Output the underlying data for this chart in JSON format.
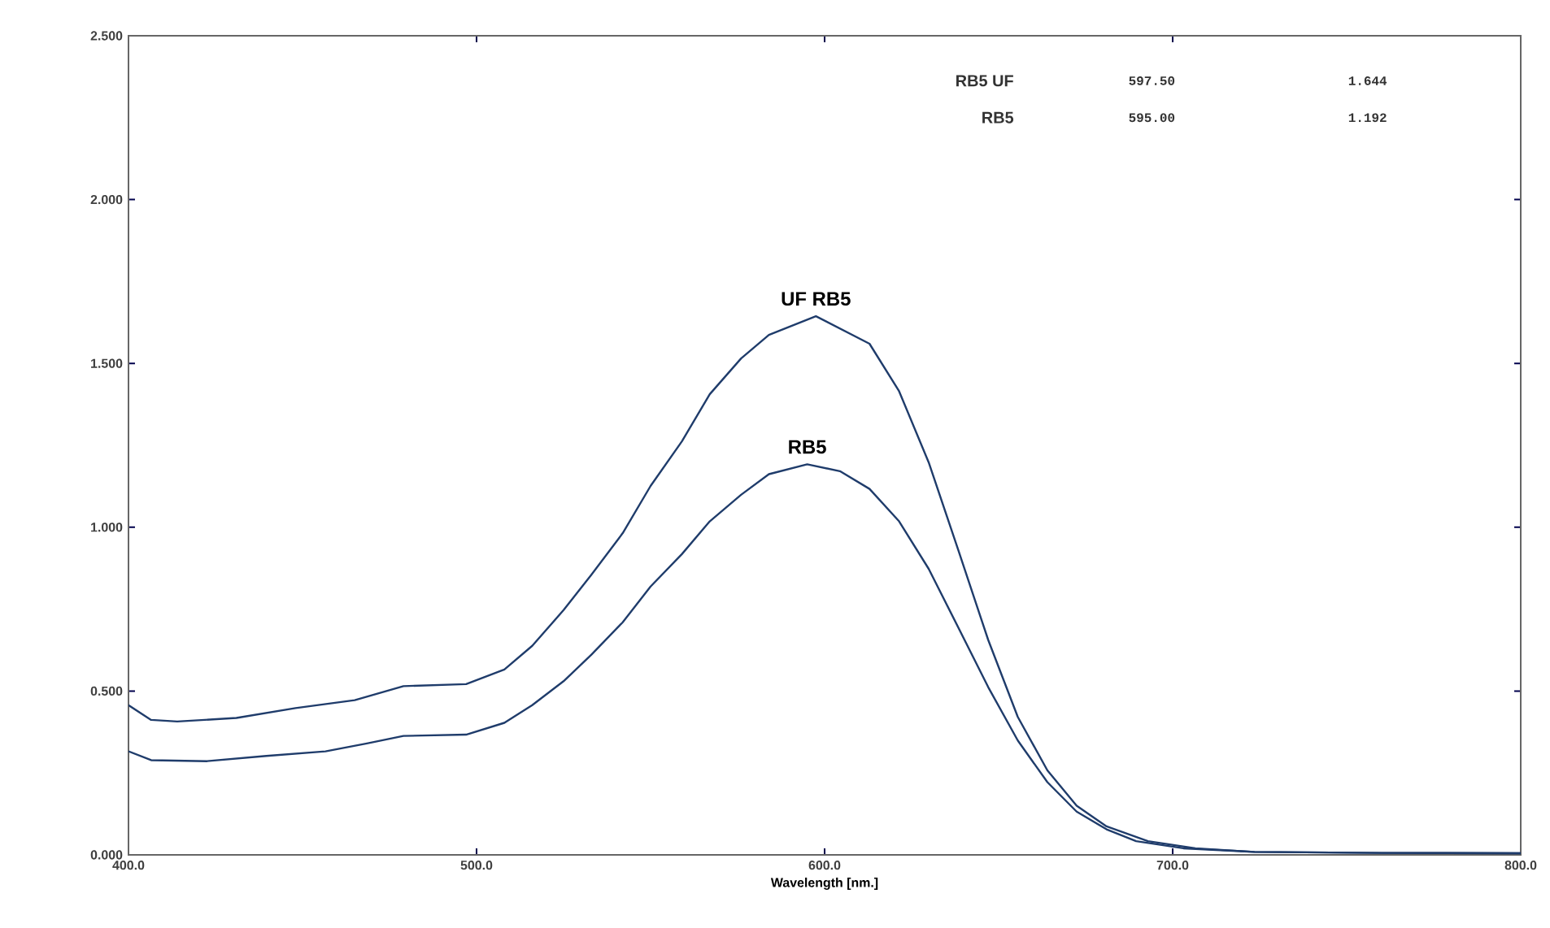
{
  "chart_data": {
    "type": "line",
    "xlabel": "Wavelength [nm.]",
    "xlim": [
      400,
      800
    ],
    "ylim": [
      0,
      2.5
    ],
    "xticks": [
      {
        "value": 400,
        "label": "400.0"
      },
      {
        "value": 500,
        "label": "500.0"
      },
      {
        "value": 600,
        "label": "600.0"
      },
      {
        "value": 700,
        "label": "700.0"
      },
      {
        "value": 800,
        "label": "800.0"
      }
    ],
    "yticks": [
      {
        "value": 0,
        "label": "0.000"
      },
      {
        "value": 0.5,
        "label": "0.500"
      },
      {
        "value": 1,
        "label": "1.000"
      },
      {
        "value": 1.5,
        "label": "1.500"
      },
      {
        "value": 2,
        "label": "2.000"
      },
      {
        "value": 2.5,
        "label": "2.500"
      }
    ],
    "grid": false,
    "marker": "none",
    "line_style": "solid",
    "annotations": [
      "RB5 UF",
      "597.50",
      "1.644",
      "RB5",
      "595.00",
      "1.192"
    ],
    "series": [
      {
        "name": "UF RB5",
        "color": "#1f3c6b",
        "x": [
          400,
          406.5,
          414,
          431,
          448,
          465,
          479,
          497,
          508,
          516,
          525,
          533,
          542,
          550,
          559,
          567,
          576,
          584,
          597.5,
          612.9,
          621.4,
          629.9,
          638.5,
          647,
          655.5,
          664,
          672.4,
          681,
          692.9,
          706.5,
          723.5,
          760,
          800
        ],
        "values": [
          0.457,
          0.412,
          0.407,
          0.418,
          0.448,
          0.472,
          0.515,
          0.521,
          0.566,
          0.638,
          0.747,
          0.855,
          0.982,
          1.126,
          1.262,
          1.406,
          1.515,
          1.587,
          1.644,
          1.56,
          1.415,
          1.198,
          0.927,
          0.656,
          0.421,
          0.258,
          0.15,
          0.087,
          0.042,
          0.02,
          0.009,
          0.006,
          0.005
        ]
      },
      {
        "name": "RB5",
        "color": "#1f3c6b",
        "x": [
          400,
          406.5,
          422.6,
          439.6,
          456.6,
          468.5,
          479,
          497,
          508,
          516,
          525,
          533,
          542,
          550,
          559,
          567,
          576,
          584,
          595,
          604.4,
          612.9,
          621.4,
          629.9,
          638.5,
          647,
          655.5,
          664,
          672.4,
          681,
          689.5,
          703.1,
          723.5,
          760,
          800
        ],
        "values": [
          0.316,
          0.289,
          0.286,
          0.302,
          0.316,
          0.34,
          0.363,
          0.367,
          0.403,
          0.457,
          0.53,
          0.611,
          0.71,
          0.819,
          0.918,
          1.018,
          1.099,
          1.162,
          1.192,
          1.171,
          1.117,
          1.018,
          0.873,
          0.692,
          0.512,
          0.349,
          0.222,
          0.132,
          0.078,
          0.042,
          0.02,
          0.009,
          0.006,
          0.005
        ]
      }
    ]
  }
}
